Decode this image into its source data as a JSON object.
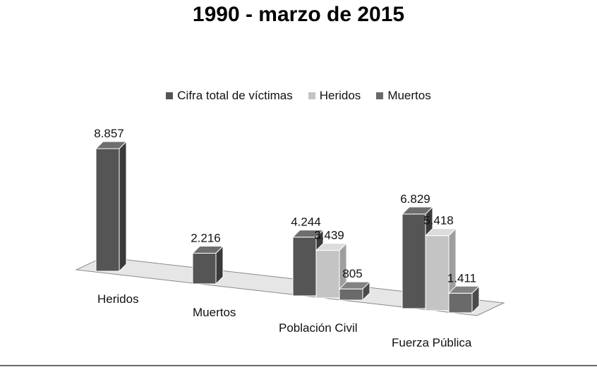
{
  "chart_data": {
    "type": "bar",
    "title": "1990 - marzo de 2015",
    "categories": [
      "Heridos",
      "Muertos",
      "Población Civil",
      "Fuerza Pública"
    ],
    "series": [
      {
        "name": "Cifra total de víctimas",
        "color": "#555555",
        "side": "#3a3a3a",
        "top": "#6e6e6e",
        "values": [
          8857,
          2216,
          4244,
          6829
        ],
        "labels": [
          "8.857",
          "2.216",
          "4.244",
          "6.829"
        ]
      },
      {
        "name": "Heridos",
        "color": "#c4c4c4",
        "side": "#9e9e9e",
        "top": "#dcdcdc",
        "values": [
          null,
          null,
          3439,
          5418
        ],
        "labels": [
          null,
          null,
          "3.439",
          "5.418"
        ]
      },
      {
        "name": "Muertos",
        "color": "#6a6a6a",
        "side": "#4a4a4a",
        "top": "#828282",
        "values": [
          null,
          null,
          805,
          1411
        ],
        "labels": [
          null,
          null,
          "805",
          "1.411"
        ]
      }
    ],
    "legend_position": "top",
    "grid": false,
    "ylim": [
      0,
      9000
    ]
  }
}
